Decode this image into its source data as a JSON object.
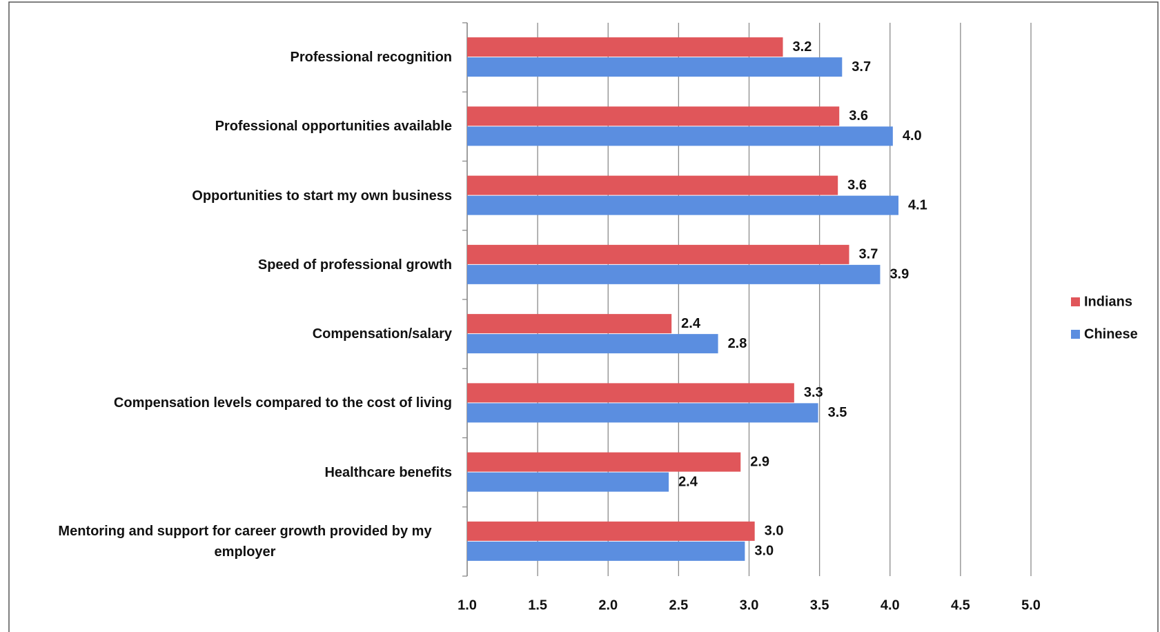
{
  "chart_data": {
    "type": "hbar",
    "categories": [
      "Professional recognition",
      "Professional opportunities available",
      "Opportunities to start my own business",
      "Speed of professional growth",
      "Compensation/salary",
      "Compensation levels compared to the cost of living",
      "Healthcare benefits",
      "Mentoring and support for career growth provided by my employer"
    ],
    "series": [
      {
        "name": "Indians",
        "color": "#e0565a",
        "values": [
          3.24,
          3.64,
          3.63,
          3.71,
          2.45,
          3.32,
          2.94,
          3.04
        ],
        "value_labels": [
          "3.2",
          "3.6",
          "3.6",
          "3.7",
          "2.4",
          "3.3",
          "2.9",
          "3.0"
        ]
      },
      {
        "name": "Chinese",
        "color": "#5b8ee0",
        "values": [
          3.66,
          4.02,
          4.06,
          3.93,
          2.78,
          3.49,
          2.43,
          2.97
        ],
        "value_labels": [
          "3.7",
          "4.0",
          "4.1",
          "3.9",
          "2.8",
          "3.5",
          "2.4",
          "3.0"
        ]
      }
    ],
    "xlim": [
      1,
      5
    ],
    "xticks": [
      {
        "value": 1,
        "label": "1.0"
      },
      {
        "value": 1.5,
        "label": "1.5"
      },
      {
        "value": 2,
        "label": "2.0"
      },
      {
        "value": 2.5,
        "label": "2.5"
      },
      {
        "value": 3,
        "label": "3.0"
      },
      {
        "value": 3.5,
        "label": "3.5"
      },
      {
        "value": 4,
        "label": "4.0"
      },
      {
        "value": 4.5,
        "label": "4.5"
      },
      {
        "value": 5,
        "label": "5.0"
      }
    ],
    "grid": true,
    "legend": "right"
  }
}
